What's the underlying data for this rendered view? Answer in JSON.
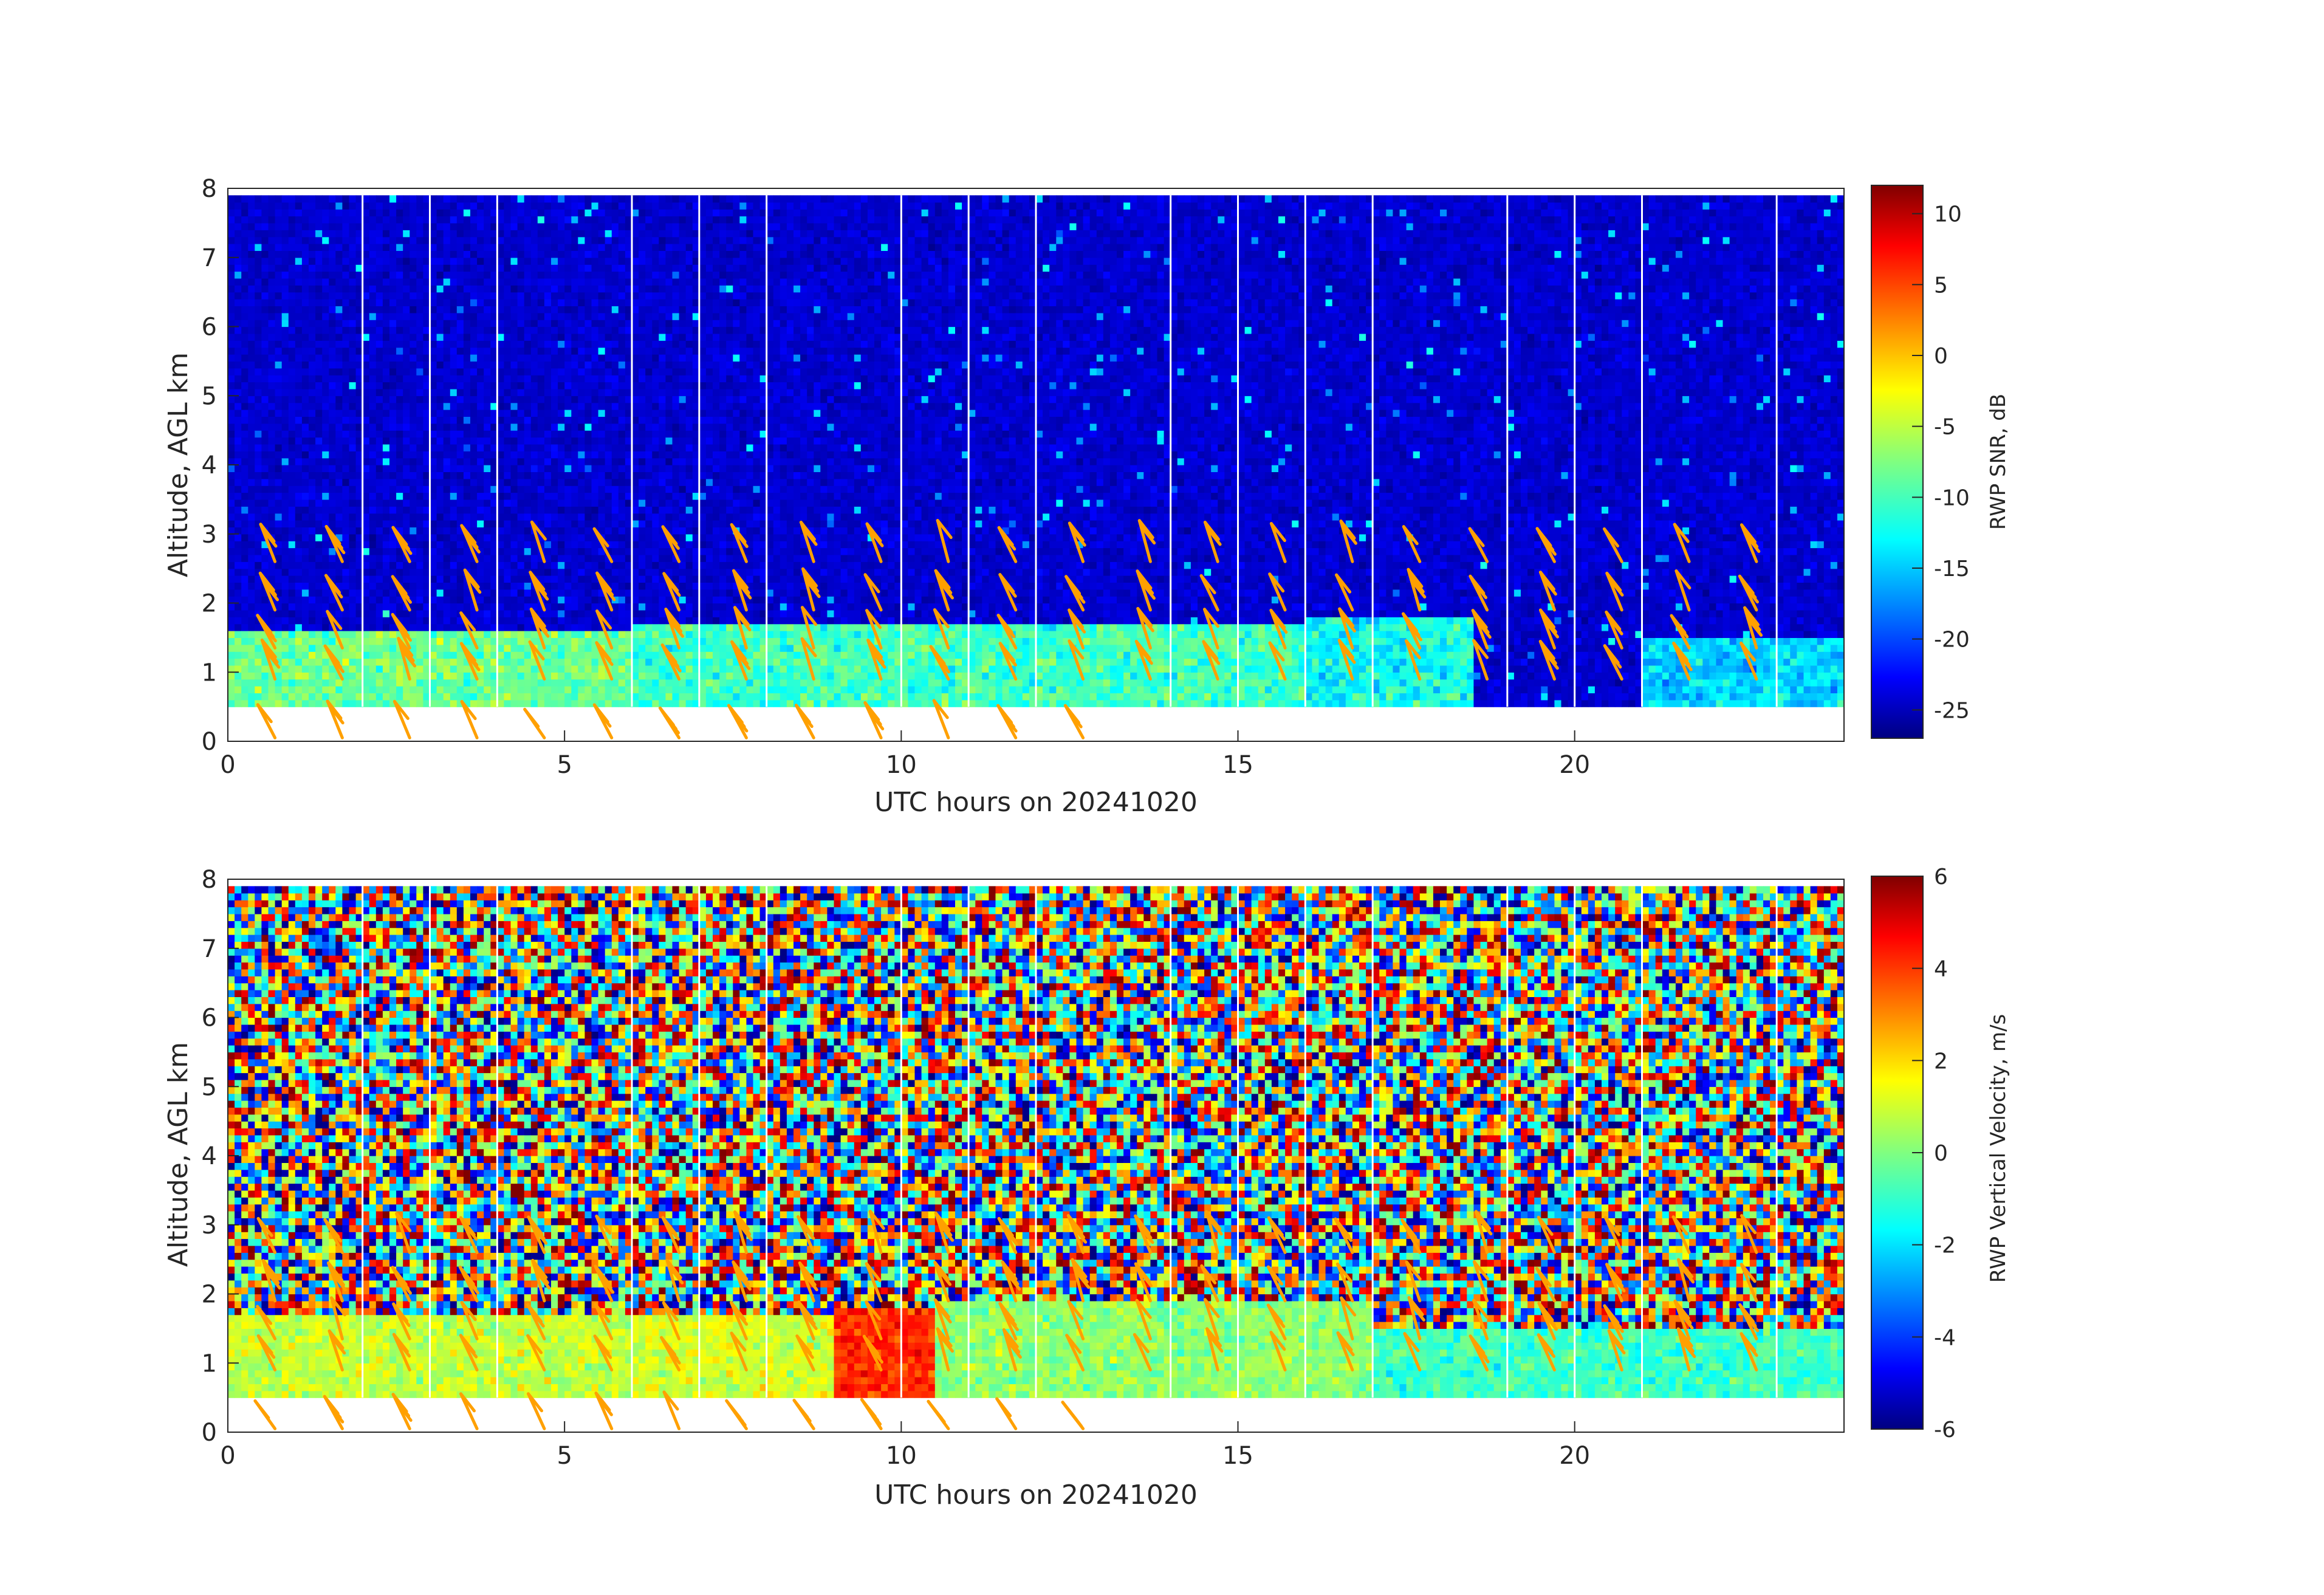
{
  "chart_data": [
    {
      "type": "heatmap",
      "xlabel": "UTC hours on 20241020",
      "ylabel": "Altitude, AGL km",
      "xlim": [
        0,
        24
      ],
      "ylim": [
        0,
        8
      ],
      "x_ticks": [
        "0",
        "5",
        "10",
        "15",
        "20"
      ],
      "y_ticks": [
        "0",
        "1",
        "2",
        "3",
        "4",
        "5",
        "6",
        "7",
        "8"
      ],
      "colorbar": {
        "label": "RWP SNR, dB",
        "range": [
          -27,
          12
        ],
        "ticks": [
          "10",
          "5",
          "0",
          "-5",
          "-10",
          "-15",
          "-20",
          "-25"
        ],
        "colormap": "jet"
      },
      "data_range_km": [
        0.5,
        7.9
      ],
      "profile_gaps_hours": [
        2,
        3,
        4,
        6,
        7,
        8,
        10,
        11,
        12,
        14,
        15,
        16,
        17,
        19,
        20,
        21,
        23
      ],
      "background_level_db": -24,
      "boundary_layer": [
        {
          "x": [
            0,
            6
          ],
          "y_top": 1.65,
          "y_bottom": 0.5,
          "level_db": -8
        },
        {
          "x": [
            6,
            16
          ],
          "y_top": 1.75,
          "y_bottom": 0.5,
          "level_db": -10
        },
        {
          "x": [
            16,
            18.5
          ],
          "y_top": 1.8,
          "y_bottom": 0.55,
          "level_db": -12
        },
        {
          "x": [
            21,
            24
          ],
          "y_top": 1.45,
          "y_bottom": 0.55,
          "level_db": -14
        }
      ],
      "overlay": "wind barbs (orange)"
    },
    {
      "type": "heatmap",
      "xlabel": "UTC hours on 20241020",
      "ylabel": "Altitude, AGL km",
      "xlim": [
        0,
        24
      ],
      "ylim": [
        0,
        8
      ],
      "x_ticks": [
        "0",
        "5",
        "10",
        "15",
        "20"
      ],
      "y_ticks": [
        "0",
        "1",
        "2",
        "3",
        "4",
        "5",
        "6",
        "7",
        "8"
      ],
      "colorbar": {
        "label": "RWP Vertical Velocity, m/s",
        "range": [
          -6,
          6
        ],
        "ticks": [
          "6",
          "4",
          "2",
          "0",
          "-2",
          "-4",
          "-6"
        ],
        "colormap": "jet"
      },
      "data_range_km": [
        0.5,
        7.9
      ],
      "profile_gaps_hours": [
        2,
        3,
        4,
        6,
        7,
        8,
        10,
        11,
        12,
        14,
        15,
        16,
        17,
        19,
        20,
        21,
        23
      ],
      "background": "noise spanning -6 to 6 m/s above the boundary layer",
      "boundary_layer": [
        {
          "x": [
            0,
            6
          ],
          "y_top": 1.7,
          "y_bottom": 0.5,
          "level_ms": 0.8
        },
        {
          "x": [
            6,
            9
          ],
          "y_top": 1.75,
          "y_bottom": 0.5,
          "level_ms": 1.0
        },
        {
          "x": [
            9,
            10.5
          ],
          "y_top": 1.8,
          "y_bottom": 0.5,
          "level_ms": 4.0
        },
        {
          "x": [
            10.5,
            17
          ],
          "y_top": 1.9,
          "y_bottom": 0.5,
          "level_ms": 0.2
        },
        {
          "x": [
            17,
            24
          ],
          "y_top": 1.5,
          "y_bottom": 0.5,
          "level_ms": -0.8
        }
      ],
      "overlay": "wind barbs (orange)"
    }
  ],
  "colors": {
    "barb": "#ffa000",
    "axis": "#262626",
    "gap": "#ffffff"
  }
}
